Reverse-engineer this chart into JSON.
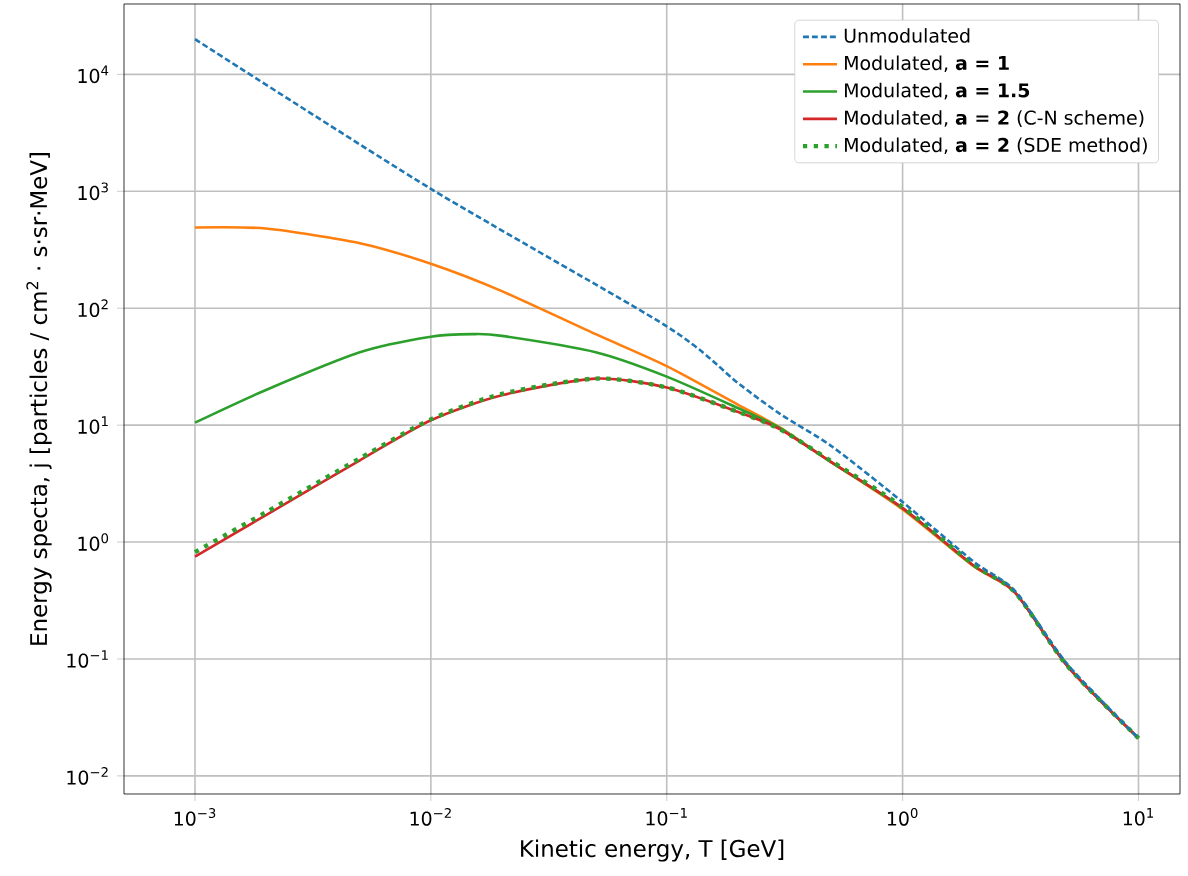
{
  "chart_data": {
    "type": "line",
    "xlabel": "Kinetic energy, T [GeV]",
    "ylabel": "Energy specta, j [particles / cm$^{2}$ · s·sr·MeV]",
    "log": "xy",
    "grid": true,
    "legend": "top right",
    "xlim": [
      0.0005,
      15
    ],
    "ylim": [
      0.007,
      40000
    ],
    "xticks": [
      {
        "value": 0.001,
        "label": "10$^{−3}$"
      },
      {
        "value": 0.01,
        "label": "10$^{−2}$"
      },
      {
        "value": 0.1,
        "label": "10$^{−1}$"
      },
      {
        "value": 1,
        "label": "10$^{0}$"
      },
      {
        "value": 10,
        "label": "10$^{1}$"
      }
    ],
    "yticks": [
      {
        "value": 0.01,
        "label": "10$^{−2}$"
      },
      {
        "value": 0.1,
        "label": "10$^{−1}$"
      },
      {
        "value": 1,
        "label": "10$^{0}$"
      },
      {
        "value": 10,
        "label": "10$^{1}$"
      },
      {
        "value": 100,
        "label": "10$^{2}$"
      },
      {
        "value": 1000,
        "label": "10$^{3}$"
      },
      {
        "value": 10000,
        "label": "10$^{4}$"
      }
    ],
    "series": [
      {
        "name": "Unmodulated",
        "color": "#1f77b4",
        "line_style": "dashed",
        "x": [
          0.001,
          0.01,
          0.1,
          0.2,
          0.3,
          0.5,
          1,
          2,
          3,
          5,
          10
        ],
        "values": [
          20000,
          1050,
          70,
          23,
          12.6,
          6.6,
          2.2,
          0.68,
          0.38,
          0.09,
          0.021
        ]
      },
      {
        "name": "Modulated, **a = 1**",
        "color": "#ff7f0e",
        "line_style": "solid",
        "x": [
          0.001,
          0.002,
          0.005,
          0.01,
          0.02,
          0.05,
          0.1,
          0.2,
          0.3,
          0.5,
          1,
          2,
          3,
          5,
          10
        ],
        "values": [
          490,
          480,
          360,
          240,
          140,
          60,
          32,
          15,
          9.6,
          4.8,
          1.9,
          0.62,
          0.37,
          0.087,
          0.021
        ]
      },
      {
        "name": "Modulated, **a = 1.5**",
        "color": "#2ca02c",
        "line_style": "solid",
        "x": [
          0.001,
          0.002,
          0.005,
          0.01,
          0.015,
          0.02,
          0.05,
          0.1,
          0.2,
          0.3,
          0.5,
          1,
          2,
          3,
          5,
          10
        ],
        "values": [
          10.5,
          20,
          42,
          57,
          60,
          58,
          42,
          26,
          14,
          9.5,
          4.8,
          1.95,
          0.63,
          0.37,
          0.087,
          0.021
        ]
      },
      {
        "name": "Modulated, **a = 2** (C-N scheme)",
        "color": "#d62728",
        "line_style": "solid",
        "x": [
          0.001,
          0.002,
          0.005,
          0.01,
          0.02,
          0.05,
          0.1,
          0.2,
          0.3,
          0.5,
          1,
          2,
          3,
          5,
          10
        ],
        "values": [
          0.75,
          1.7,
          5,
          11,
          18,
          25,
          21,
          13,
          9.3,
          4.8,
          1.95,
          0.63,
          0.37,
          0.087,
          0.021
        ]
      },
      {
        "name": "Modulated, **a = 2** (SDE method)",
        "color": "#2ca02c",
        "line_style": "dotted",
        "x": [
          0.001,
          0.002,
          0.005,
          0.01,
          0.02,
          0.05,
          0.1,
          0.2,
          0.3,
          0.5,
          1,
          2,
          3,
          5,
          10
        ],
        "values": [
          0.82,
          1.8,
          5.2,
          11.2,
          18.5,
          25,
          21,
          13,
          9.3,
          4.9,
          2.0,
          0.64,
          0.37,
          0.087,
          0.021
        ]
      }
    ]
  }
}
